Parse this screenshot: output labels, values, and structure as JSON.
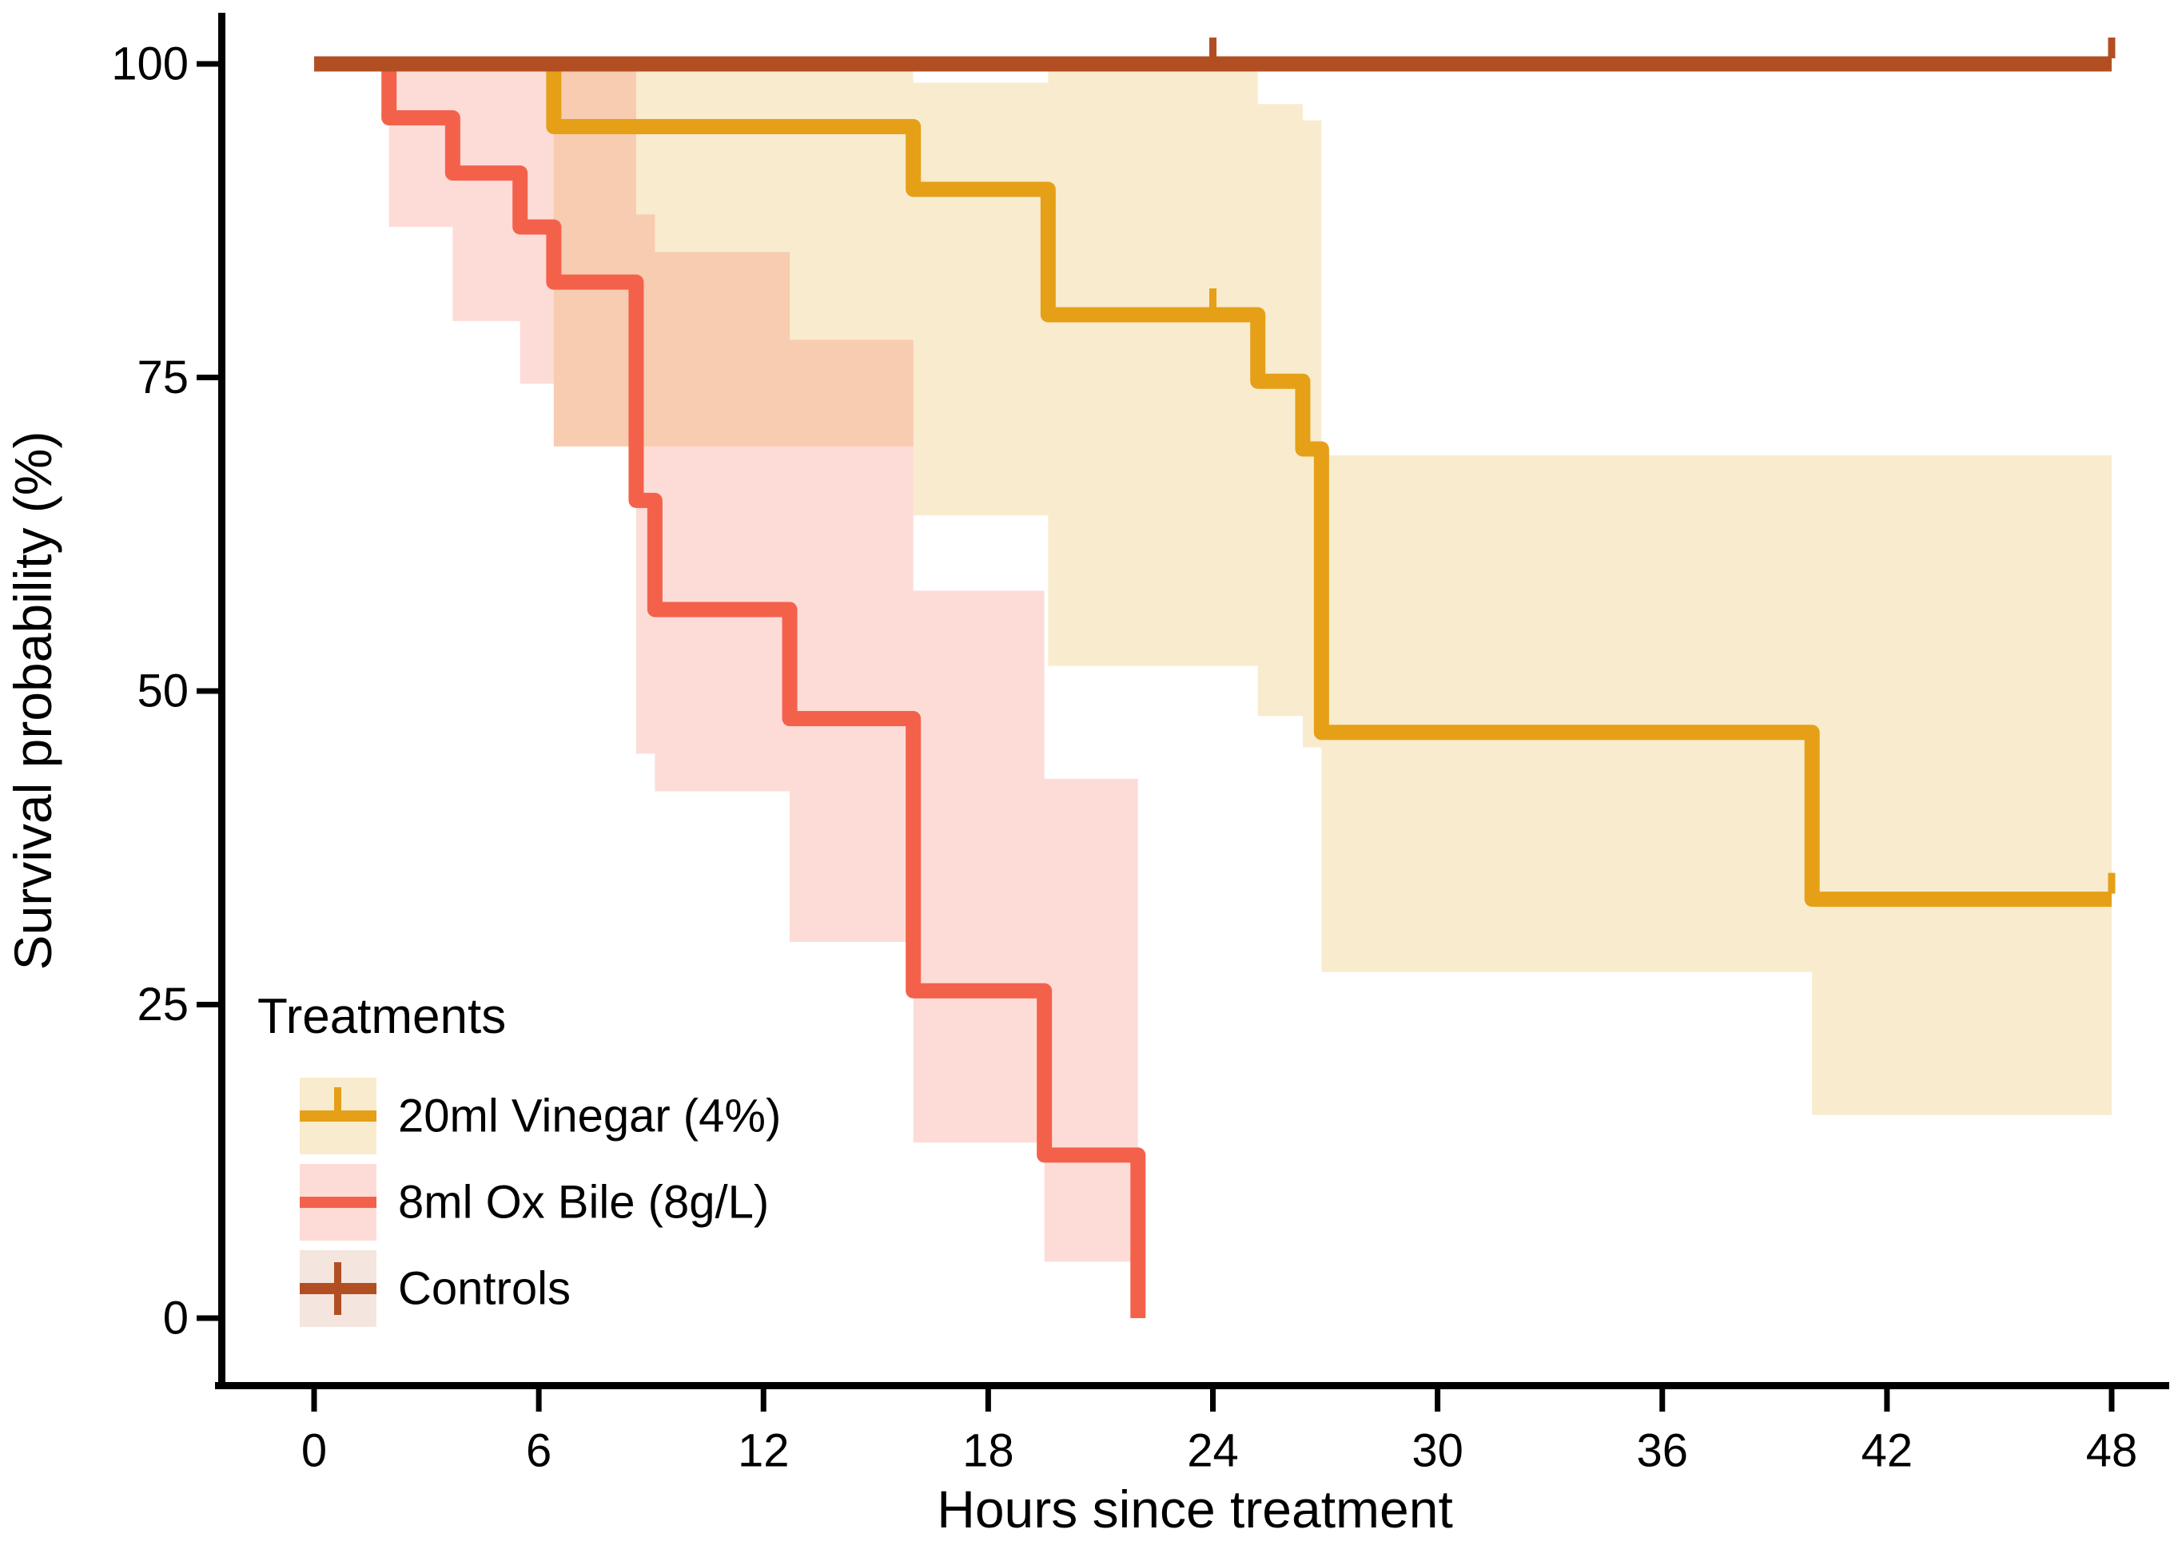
{
  "chart_data": {
    "type": "line",
    "subtype": "kaplan-meier-step-survival",
    "title": "",
    "xlabel": "Hours since treatment",
    "ylabel": "Survival probability (%)",
    "x_ticks": [
      0,
      6,
      12,
      18,
      24,
      30,
      36,
      42,
      48
    ],
    "y_ticks": [
      0,
      25,
      50,
      75,
      100
    ],
    "xlim": [
      0,
      48
    ],
    "ylim": [
      0,
      100
    ],
    "grid": "off",
    "legend_position": "inside-bottom-left",
    "legend_title": "Treatments",
    "axis_color": "#000000",
    "series": [
      {
        "name": "20ml Vinegar (4%)",
        "color": "#E5A017",
        "band_color": "rgba(229,160,23,0.21)",
        "legend_censor_mark": "above",
        "steps": [
          [
            0,
            100
          ],
          [
            6.4,
            95
          ],
          [
            16,
            90
          ],
          [
            19.6,
            80
          ],
          [
            25.2,
            74.7
          ],
          [
            26.4,
            69.3
          ],
          [
            26.9,
            46.7
          ],
          [
            40,
            33.4
          ],
          [
            48,
            33.4
          ]
        ],
        "censors": [
          [
            24,
            80
          ],
          [
            48,
            33.4
          ]
        ],
        "ci_segments": [
          [
            6.4,
            16,
            99.5,
            69.5
          ],
          [
            16,
            19.6,
            98.5,
            64
          ],
          [
            19.6,
            25.2,
            99.4,
            52
          ],
          [
            25.2,
            26.4,
            96.8,
            48
          ],
          [
            26.4,
            26.9,
            95.5,
            45.5
          ],
          [
            26.9,
            40,
            68.8,
            27.6
          ],
          [
            40,
            48,
            68.8,
            16.2
          ]
        ]
      },
      {
        "name": "8ml Ox Bile (8g/L)",
        "color": "#F4614B",
        "band_color": "rgba(244,97,75,0.22)",
        "legend_censor_mark": "none",
        "steps": [
          [
            0,
            100
          ],
          [
            2,
            95.7
          ],
          [
            3.7,
            91.3
          ],
          [
            5.5,
            87
          ],
          [
            6.4,
            82.6
          ],
          [
            8.6,
            65.2
          ],
          [
            9.1,
            56.5
          ],
          [
            12.7,
            47.8
          ],
          [
            16,
            26.1
          ],
          [
            19.5,
            13
          ],
          [
            22,
            0
          ]
        ],
        "censors": [],
        "ci_segments": [
          [
            2,
            3.7,
            100,
            87
          ],
          [
            3.7,
            5.5,
            100,
            79.5
          ],
          [
            5.5,
            6.4,
            100,
            74.5
          ],
          [
            6.4,
            8.6,
            99.5,
            69.5
          ],
          [
            8.6,
            9.1,
            88,
            45
          ],
          [
            9.1,
            12.7,
            85,
            42
          ],
          [
            12.7,
            16,
            78,
            30
          ],
          [
            16,
            19.5,
            58,
            14
          ],
          [
            19.5,
            22,
            43,
            4.5
          ]
        ]
      },
      {
        "name": "Controls",
        "color": "#B24F22",
        "band_color": "rgba(178,79,34,0.15)",
        "legend_censor_mark": "through",
        "steps": [
          [
            0,
            100
          ],
          [
            48,
            100
          ]
        ],
        "censors": [
          [
            24,
            100
          ],
          [
            48,
            100
          ]
        ],
        "ci_segments": []
      }
    ]
  }
}
